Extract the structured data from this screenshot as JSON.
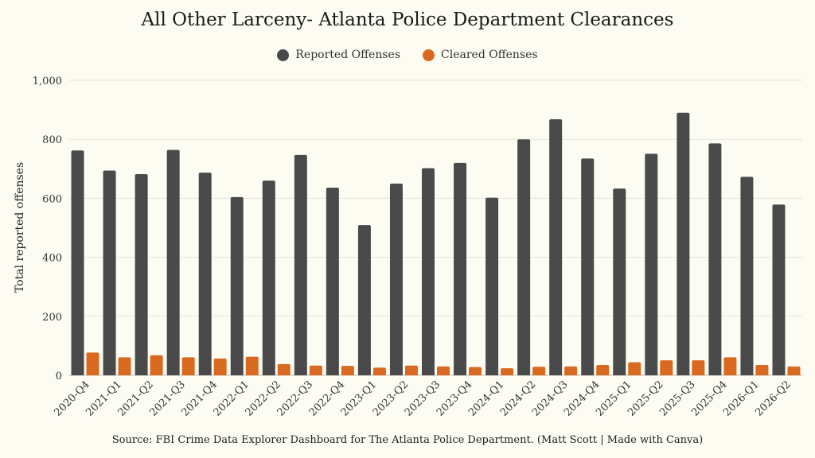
{
  "chart_data": {
    "type": "bar",
    "title": "All Other Larceny- Atlanta Police Department Clearances",
    "xlabel": "",
    "ylabel": "Total reported offenses",
    "ylim": [
      0,
      1000
    ],
    "yticks": [
      "0",
      "200",
      "400",
      "600",
      "800",
      "1,000"
    ],
    "grid": true,
    "legend_position": "top-center",
    "categories": [
      "2020-Q4",
      "2021-Q1",
      "2021-Q2",
      "2021-Q3",
      "2021-Q4",
      "2022-Q1",
      "2022-Q2",
      "2022-Q3",
      "2022-Q4",
      "2023-Q1",
      "2023-Q2",
      "2023-Q3",
      "2023-Q4",
      "2024-Q1",
      "2024-Q2",
      "2024-Q3",
      "2024-Q4",
      "2025-Q1",
      "2025-Q2",
      "2025-Q3",
      "2025-Q4",
      "2026-Q1",
      "2026-Q2"
    ],
    "series": [
      {
        "name": "Reported Offenses",
        "color": "#4a4a4a",
        "values": [
          762,
          694,
          682,
          764,
          687,
          604,
          660,
          747,
          636,
          509,
          650,
          702,
          720,
          602,
          800,
          868,
          735,
          633,
          751,
          890,
          786,
          673,
          579
        ]
      },
      {
        "name": "Cleared Offenses",
        "color": "#d9691e",
        "values": [
          77,
          61,
          68,
          61,
          57,
          63,
          38,
          33,
          32,
          26,
          33,
          30,
          28,
          24,
          29,
          30,
          35,
          44,
          51,
          51,
          61,
          35,
          30
        ]
      }
    ],
    "source": "Source: FBI Crime Data Explorer Dashboard for The Atlanta Police Department. (Matt Scott | Made with Canva)"
  }
}
